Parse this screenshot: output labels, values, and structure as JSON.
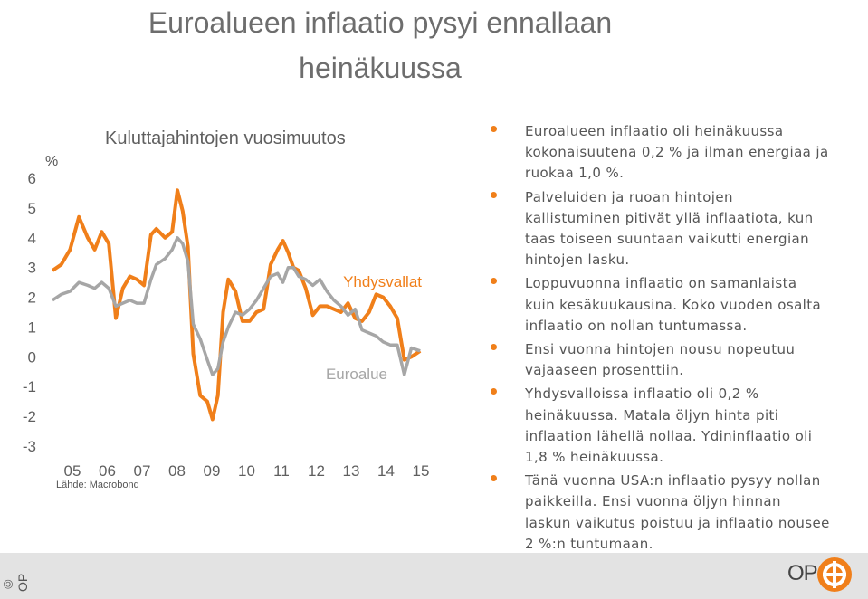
{
  "page": {
    "title": "Euroalueen inflaatio pysyi ennallaan heinäkuussa",
    "title_line1": "Euroalueen inflaatio pysyi ennallaan",
    "title_line2": "heinäkuussa",
    "copyright": "© OP",
    "logo_text": "OP"
  },
  "colors": {
    "accent": "#f07f1a",
    "grey_series": "#a6a6a6",
    "footer_bg": "#e3e3e3"
  },
  "bullets": [
    "Euroalueen inflaatio oli heinäkuussa kokonaisuutena 0,2 % ja ilman energiaa ja ruokaa 1,0 %.",
    "Palveluiden ja ruoan hintojen kallistuminen pitivät yllä inflaatiota, kun taas toiseen suuntaan vaikutti energian hintojen lasku.",
    "Loppuvuonna inflaatio on samanlaista kuin kesäkuukausina. Koko vuoden osalta inflaatio on nollan tuntumassa.",
    "Ensi vuonna hintojen nousu nopeutuu vajaaseen prosenttiin.",
    "Yhdysvalloissa inflaatio oli 0,2 % heinäkuussa. Matala öljyn hinta piti inflaation lähellä nollaa. Ydininflaatio oli 1,8 % heinäkuussa.",
    "Tänä vuonna USA:n inflaatio pysyy nollan paikkeilla. Ensi vuonna öljyn hinnan laskun vaikutus poistuu ja inflaatio nousee 2 %:n tuntumaan."
  ],
  "chart_data": {
    "type": "line",
    "title": "Kuluttajahintojen vuosimuutos",
    "ylabel": "%",
    "source": "Lähde: Macrobond",
    "ylim": [
      -3,
      6
    ],
    "yticks": [
      "6",
      "5",
      "4",
      "3",
      "2",
      "1",
      "0",
      "-1",
      "-2",
      "-3"
    ],
    "xlim": [
      2005,
      2015.6
    ],
    "xticks": [
      "05",
      "06",
      "07",
      "08",
      "09",
      "10",
      "11",
      "12",
      "13",
      "14",
      "15"
    ],
    "grid": false,
    "legend": "inline labels",
    "series": [
      {
        "name": "Yhdysvallat",
        "color": "#f07f1a",
        "x": [
          2005.0,
          2005.25,
          2005.5,
          2005.75,
          2006.0,
          2006.2,
          2006.4,
          2006.6,
          2006.8,
          2007.0,
          2007.2,
          2007.4,
          2007.6,
          2007.8,
          2007.95,
          2008.2,
          2008.4,
          2008.55,
          2008.7,
          2008.85,
          2009.0,
          2009.2,
          2009.4,
          2009.55,
          2009.7,
          2009.85,
          2010.0,
          2010.2,
          2010.4,
          2010.6,
          2010.8,
          2011.0,
          2011.2,
          2011.4,
          2011.55,
          2011.7,
          2011.85,
          2012.0,
          2012.2,
          2012.4,
          2012.6,
          2012.8,
          2013.0,
          2013.2,
          2013.4,
          2013.6,
          2013.8,
          2014.0,
          2014.2,
          2014.4,
          2014.6,
          2014.8,
          2015.0,
          2015.2,
          2015.45
        ],
        "values": [
          2.9,
          3.1,
          3.6,
          4.7,
          4.0,
          3.6,
          4.2,
          3.8,
          1.3,
          2.3,
          2.7,
          2.6,
          2.4,
          4.1,
          4.3,
          4.0,
          4.2,
          5.6,
          4.9,
          3.7,
          0.1,
          -1.3,
          -1.5,
          -2.1,
          -1.3,
          1.5,
          2.6,
          2.2,
          1.2,
          1.2,
          1.5,
          1.6,
          3.1,
          3.6,
          3.9,
          3.5,
          3.0,
          2.9,
          2.3,
          1.4,
          1.7,
          1.7,
          1.6,
          1.5,
          1.8,
          1.3,
          1.2,
          1.5,
          2.1,
          2.0,
          1.7,
          1.3,
          -0.1,
          0.0,
          0.2
        ]
      },
      {
        "name": "Euroalue",
        "color": "#a6a6a6",
        "x": [
          2005.0,
          2005.25,
          2005.5,
          2005.75,
          2006.0,
          2006.2,
          2006.4,
          2006.6,
          2006.8,
          2007.0,
          2007.2,
          2007.4,
          2007.6,
          2007.8,
          2007.95,
          2008.2,
          2008.4,
          2008.55,
          2008.7,
          2008.85,
          2009.0,
          2009.2,
          2009.4,
          2009.55,
          2009.7,
          2009.85,
          2010.0,
          2010.2,
          2010.4,
          2010.6,
          2010.8,
          2011.0,
          2011.2,
          2011.4,
          2011.55,
          2011.7,
          2011.85,
          2012.0,
          2012.2,
          2012.4,
          2012.6,
          2012.8,
          2013.0,
          2013.2,
          2013.4,
          2013.6,
          2013.8,
          2014.0,
          2014.2,
          2014.4,
          2014.6,
          2014.8,
          2015.0,
          2015.2,
          2015.45
        ],
        "values": [
          1.9,
          2.1,
          2.2,
          2.5,
          2.4,
          2.3,
          2.5,
          2.3,
          1.7,
          1.8,
          1.9,
          1.8,
          1.8,
          2.6,
          3.1,
          3.3,
          3.6,
          4.0,
          3.8,
          3.2,
          1.1,
          0.6,
          -0.1,
          -0.6,
          -0.4,
          0.5,
          1.0,
          1.5,
          1.4,
          1.6,
          1.9,
          2.3,
          2.7,
          2.8,
          2.5,
          3.0,
          3.0,
          2.7,
          2.6,
          2.4,
          2.6,
          2.2,
          1.9,
          1.7,
          1.4,
          1.6,
          0.9,
          0.8,
          0.7,
          0.5,
          0.4,
          0.4,
          -0.6,
          0.3,
          0.2
        ]
      }
    ]
  }
}
